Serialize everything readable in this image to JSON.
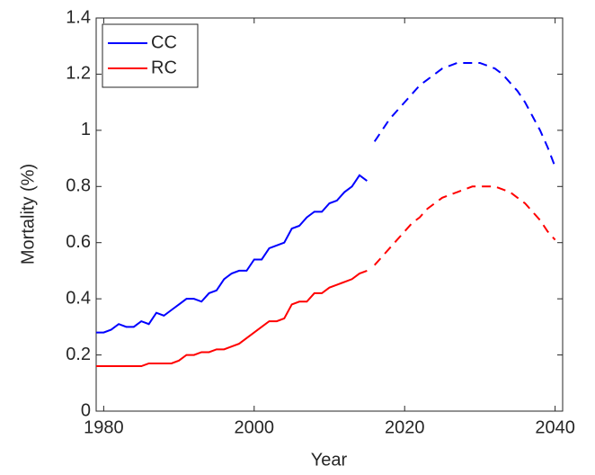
{
  "chart_data": {
    "type": "line",
    "xlabel": "Year",
    "ylabel": "Mortality (%)",
    "x": [
      1979,
      1980,
      1981,
      1982,
      1983,
      1984,
      1985,
      1986,
      1987,
      1988,
      1989,
      1990,
      1991,
      1992,
      1993,
      1994,
      1995,
      1996,
      1997,
      1998,
      1999,
      2000,
      2001,
      2002,
      2003,
      2004,
      2005,
      2006,
      2007,
      2008,
      2009,
      2010,
      2011,
      2012,
      2013,
      2014,
      2015,
      2016,
      2017,
      2018,
      2019,
      2020,
      2021,
      2022,
      2023,
      2024,
      2025,
      2026,
      2027,
      2028,
      2029,
      2030,
      2031,
      2032,
      2033,
      2034,
      2035,
      2036,
      2037,
      2038,
      2039,
      2040
    ],
    "series": [
      {
        "name": "CC",
        "color": "#0000ff",
        "values": [
          0.28,
          0.28,
          0.29,
          0.31,
          0.3,
          0.3,
          0.32,
          0.31,
          0.35,
          0.34,
          0.36,
          0.38,
          0.4,
          0.4,
          0.39,
          0.42,
          0.43,
          0.47,
          0.49,
          0.5,
          0.5,
          0.54,
          0.54,
          0.58,
          0.59,
          0.6,
          0.65,
          0.66,
          0.69,
          0.71,
          0.71,
          0.74,
          0.75,
          0.78,
          0.8,
          0.84,
          0.82,
          null,
          null,
          null,
          null,
          null,
          null,
          null,
          null,
          null,
          null,
          null,
          null,
          null,
          null,
          null,
          null,
          null,
          null,
          null,
          null,
          null,
          null,
          null,
          null,
          null
        ],
        "projected_values": [
          null,
          null,
          null,
          null,
          null,
          null,
          null,
          null,
          null,
          null,
          null,
          null,
          null,
          null,
          null,
          null,
          null,
          null,
          null,
          null,
          null,
          null,
          null,
          null,
          null,
          null,
          null,
          null,
          null,
          null,
          null,
          null,
          null,
          null,
          null,
          null,
          null,
          0.96,
          1.0,
          1.04,
          1.07,
          1.1,
          1.13,
          1.16,
          1.18,
          1.2,
          1.22,
          1.23,
          1.24,
          1.24,
          1.24,
          1.24,
          1.23,
          1.22,
          1.2,
          1.17,
          1.14,
          1.1,
          1.05,
          1.0,
          0.94,
          0.87
        ]
      },
      {
        "name": "RC",
        "color": "#ff0000",
        "values": [
          0.16,
          0.16,
          0.16,
          0.16,
          0.16,
          0.16,
          0.16,
          0.17,
          0.17,
          0.17,
          0.17,
          0.18,
          0.2,
          0.2,
          0.21,
          0.21,
          0.22,
          0.22,
          0.23,
          0.24,
          0.26,
          0.28,
          0.3,
          0.32,
          0.32,
          0.33,
          0.38,
          0.39,
          0.39,
          0.42,
          0.42,
          0.44,
          0.45,
          0.46,
          0.47,
          0.49,
          0.5,
          null,
          null,
          null,
          null,
          null,
          null,
          null,
          null,
          null,
          null,
          null,
          null,
          null,
          null,
          null,
          null,
          null,
          null,
          null,
          null,
          null,
          null,
          null,
          null,
          null
        ],
        "projected_values": [
          null,
          null,
          null,
          null,
          null,
          null,
          null,
          null,
          null,
          null,
          null,
          null,
          null,
          null,
          null,
          null,
          null,
          null,
          null,
          null,
          null,
          null,
          null,
          null,
          null,
          null,
          null,
          null,
          null,
          null,
          null,
          null,
          null,
          null,
          null,
          null,
          null,
          0.52,
          0.55,
          0.58,
          0.61,
          0.64,
          0.67,
          0.69,
          0.72,
          0.74,
          0.76,
          0.77,
          0.78,
          0.79,
          0.8,
          0.8,
          0.8,
          0.8,
          0.79,
          0.78,
          0.76,
          0.74,
          0.71,
          0.68,
          0.64,
          0.61
        ]
      }
    ],
    "xlim": [
      1979,
      2041
    ],
    "xticks": [
      1980,
      2000,
      2020,
      2040
    ],
    "ylim": [
      0,
      1.4
    ],
    "yticks": [
      0,
      0.2,
      0.4,
      0.6,
      0.8,
      1,
      1.2,
      1.4
    ],
    "grid": false,
    "legend_location": "northwest"
  }
}
